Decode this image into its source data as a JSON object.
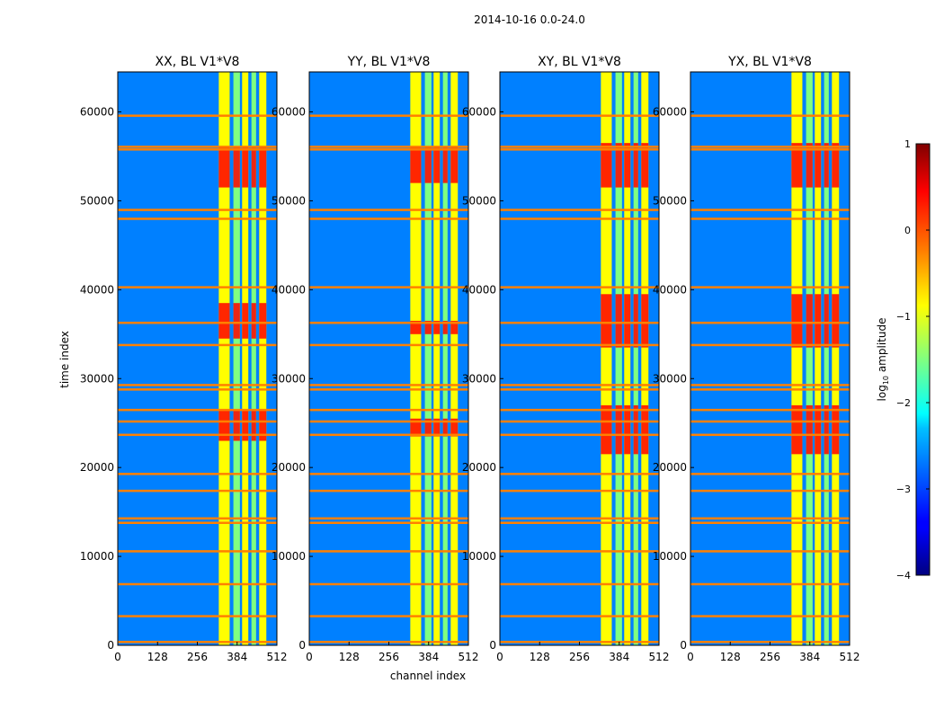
{
  "figure": {
    "suptitle": "2014-10-16 0.0-24.0",
    "xlabel": "channel index",
    "ylabel": "time index"
  },
  "chart_data": [
    {
      "type": "heatmap",
      "title": "XX, BL V1*V8",
      "x_ticks": [
        0,
        128,
        256,
        384,
        512
      ],
      "y_ticks": [
        0,
        10000,
        20000,
        30000,
        40000,
        50000,
        60000
      ],
      "xlim": [
        0,
        512
      ],
      "ylim": [
        0,
        64500
      ],
      "band_channels": [
        [
          325,
          360
        ],
        [
          372,
          393
        ],
        [
          400,
          420
        ],
        [
          430,
          445
        ],
        [
          455,
          478
        ]
      ],
      "bright_time_ranges": [
        [
          34500,
          38500
        ],
        [
          23000,
          26500
        ],
        [
          51500,
          56000
        ]
      ],
      "flag_rows": [
        400,
        3300,
        6900,
        10600,
        13800,
        14300,
        17400,
        19300,
        23700,
        25200,
        26500,
        28800,
        29300,
        33800,
        36300,
        40300,
        48000,
        49000,
        55800,
        56100,
        59600
      ]
    },
    {
      "type": "heatmap",
      "title": "YY, BL V1*V8",
      "x_ticks": [
        0,
        128,
        256,
        384,
        512
      ],
      "y_ticks": [
        0,
        10000,
        20000,
        30000,
        40000,
        50000,
        60000
      ],
      "xlim": [
        0,
        512
      ],
      "ylim": [
        0,
        64500
      ],
      "band_channels": [
        [
          325,
          360
        ],
        [
          372,
          393
        ],
        [
          400,
          420
        ],
        [
          430,
          445
        ],
        [
          455,
          478
        ]
      ],
      "bright_time_ranges": [
        [
          35000,
          36500
        ],
        [
          23500,
          25500
        ],
        [
          52000,
          56000
        ]
      ],
      "flag_rows": [
        400,
        3300,
        6900,
        10600,
        13800,
        14300,
        17400,
        19300,
        23700,
        25200,
        26500,
        28800,
        29300,
        33800,
        36300,
        40300,
        48000,
        49000,
        55800,
        56100,
        59600
      ]
    },
    {
      "type": "heatmap",
      "title": "XY, BL V1*V8",
      "x_ticks": [
        0,
        128,
        256,
        384,
        512
      ],
      "y_ticks": [
        0,
        10000,
        20000,
        30000,
        40000,
        50000,
        60000
      ],
      "xlim": [
        0,
        512
      ],
      "ylim": [
        0,
        64500
      ],
      "band_channels": [
        [
          325,
          360
        ],
        [
          372,
          393
        ],
        [
          400,
          420
        ],
        [
          430,
          445
        ],
        [
          455,
          478
        ]
      ],
      "bright_time_ranges": [
        [
          33500,
          39500
        ],
        [
          21500,
          27000
        ],
        [
          51500,
          56500
        ]
      ],
      "flag_rows": [
        400,
        3300,
        6900,
        10600,
        13800,
        14300,
        17400,
        19300,
        23700,
        25200,
        26500,
        28800,
        29300,
        33800,
        36300,
        40300,
        48000,
        49000,
        55800,
        56100,
        59600
      ]
    },
    {
      "type": "heatmap",
      "title": "YX, BL V1*V8",
      "x_ticks": [
        0,
        128,
        256,
        384,
        512
      ],
      "y_ticks": [
        0,
        10000,
        20000,
        30000,
        40000,
        50000,
        60000
      ],
      "xlim": [
        0,
        512
      ],
      "ylim": [
        0,
        64500
      ],
      "band_channels": [
        [
          325,
          360
        ],
        [
          372,
          393
        ],
        [
          400,
          420
        ],
        [
          430,
          445
        ],
        [
          455,
          478
        ]
      ],
      "bright_time_ranges": [
        [
          33500,
          39500
        ],
        [
          21500,
          27000
        ],
        [
          51500,
          56500
        ]
      ],
      "flag_rows": [
        400,
        3300,
        6900,
        10600,
        13800,
        14300,
        17400,
        19300,
        23700,
        25200,
        26500,
        28800,
        29300,
        33800,
        36300,
        40300,
        48000,
        49000,
        55800,
        56100,
        59600
      ]
    }
  ],
  "colorbar": {
    "label": "log10 amplitude",
    "ticks": [
      1,
      0,
      -1,
      -2,
      -3,
      -4
    ],
    "tick_labels": [
      "1",
      "0",
      "−1",
      "−2",
      "−3",
      "−4"
    ],
    "range": [
      -4,
      1
    ],
    "colors": {
      "dark_red": "#800000",
      "red": "#ff0000",
      "orange": "#ff8000",
      "yellow": "#ffff00",
      "green": "#80ff80",
      "cyan": "#00ffff",
      "blue": "#0080ff",
      "dark_blue": "#000080"
    }
  }
}
